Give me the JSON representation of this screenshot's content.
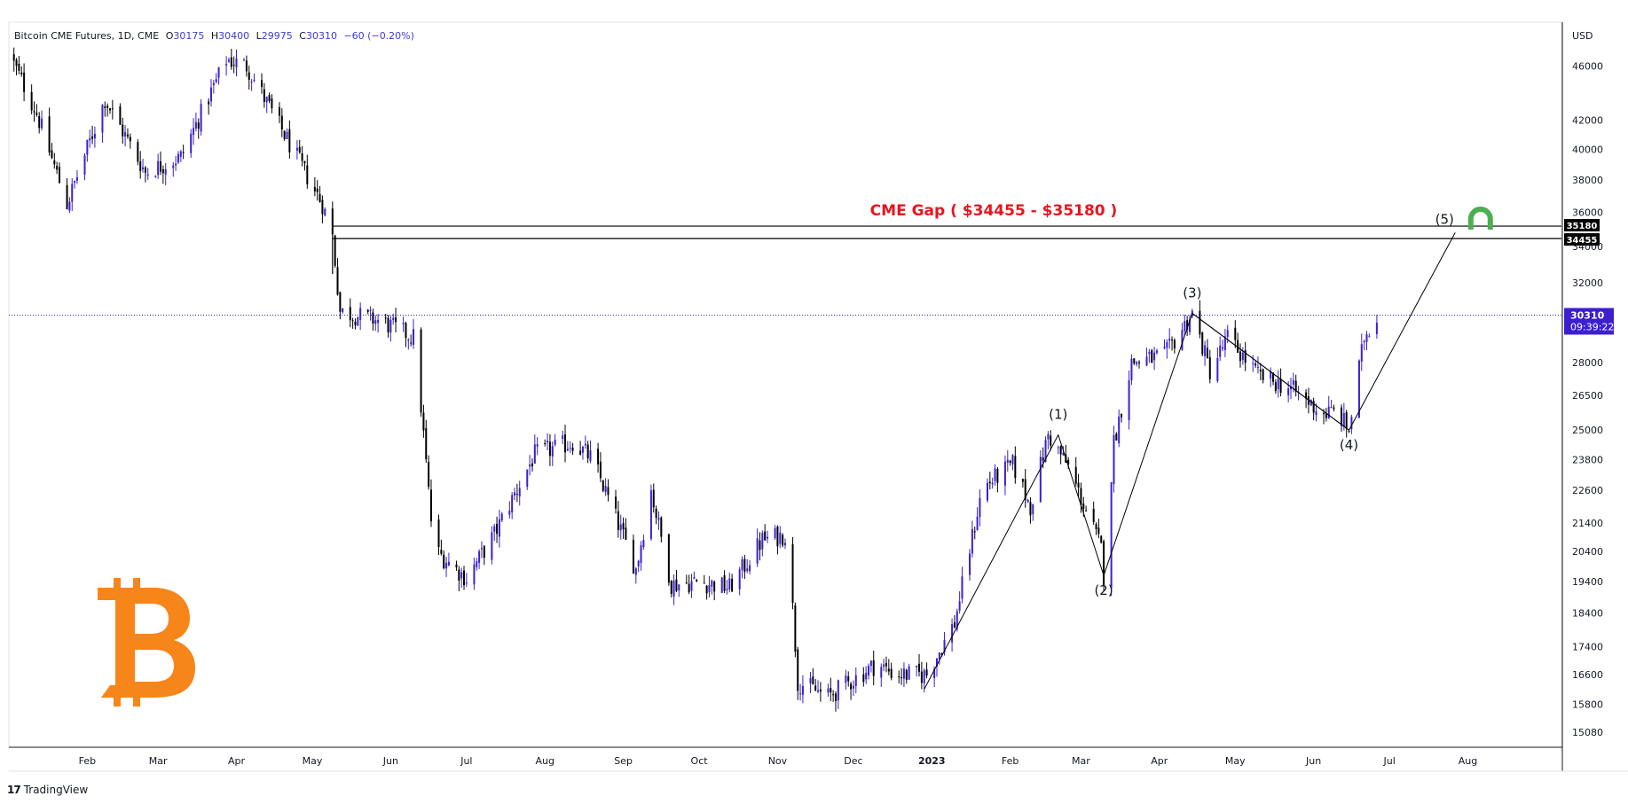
{
  "header": {
    "symbol": "Bitcoin CME Futures, 1D, CME",
    "open_label": "O",
    "open": "30175",
    "high_label": "H",
    "high": "30400",
    "low_label": "L",
    "low": "29975",
    "close_label": "C",
    "close": "30310",
    "change": "−60 (−0.20%)"
  },
  "price_axis": {
    "currency": "USD",
    "current_price": "30310",
    "countdown": "09:39:22",
    "gap_high_label": "35180",
    "gap_low_label": "34455"
  },
  "footer": {
    "brand": "TradingView"
  },
  "colors": {
    "up_candle": "#3c1fd1",
    "down_candle": "#000000",
    "gap_title": "#e8141e",
    "current_price": "#3c1fd1",
    "bitcoin_logo": "#f7861a",
    "target_icon": "#4caf50"
  },
  "icons": [
    "bitcoin-logo-icon",
    "target-arch-icon",
    "tradingview-logo-icon"
  ],
  "chart_data": {
    "type": "candlestick",
    "title": "Bitcoin CME Futures, 1D, CME",
    "xlabel": "",
    "ylabel": "USD",
    "ylim": [
      14700,
      49500
    ],
    "y_scale": "log",
    "grid": false,
    "x_ticks": [
      "Feb",
      "Mar",
      "Apr",
      "May",
      "Jun",
      "Jul",
      "Aug",
      "Sep",
      "Oct",
      "Nov",
      "Dec",
      "2023",
      "Feb",
      "Mar",
      "Apr",
      "May",
      "Jun",
      "Jul",
      "Aug"
    ],
    "y_ticks": [
      46000,
      42000,
      40000,
      38000,
      36000,
      34000,
      32000,
      28000,
      26500,
      25000,
      23800,
      22600,
      21400,
      20400,
      19400,
      18400,
      17400,
      16600,
      15800,
      15080
    ],
    "close_path": {
      "dates": [
        "2022-01-01",
        "2022-01-12",
        "2022-01-24",
        "2022-02-08",
        "2022-02-24",
        "2022-03-10",
        "2022-03-28",
        "2022-04-05",
        "2022-04-20",
        "2022-05-05",
        "2022-05-09",
        "2022-05-12",
        "2022-05-28",
        "2022-06-10",
        "2022-06-13",
        "2022-06-18",
        "2022-07-01",
        "2022-07-12",
        "2022-07-28",
        "2022-08-12",
        "2022-08-20",
        "2022-09-06",
        "2022-09-12",
        "2022-09-20",
        "2022-10-01",
        "2022-10-13",
        "2022-10-26",
        "2022-11-05",
        "2022-11-09",
        "2022-11-21",
        "2022-12-10",
        "2022-12-18",
        "2022-12-30",
        "2023-01-10",
        "2023-01-21",
        "2023-02-02",
        "2023-02-09",
        "2023-02-16",
        "2023-02-24",
        "2023-03-09",
        "2023-03-10",
        "2023-03-14",
        "2023-03-21",
        "2023-04-03",
        "2023-04-14",
        "2023-04-21",
        "2023-04-28",
        "2023-05-10",
        "2023-05-23",
        "2023-06-05",
        "2023-06-10",
        "2023-06-15",
        "2023-06-21",
        "2023-06-26"
      ],
      "close": [
        47000,
        42500,
        36500,
        43500,
        38500,
        39500,
        46500,
        46000,
        41000,
        36500,
        34600,
        30500,
        30000,
        29200,
        26000,
        20500,
        19500,
        21000,
        24000,
        24500,
        23800,
        19800,
        22600,
        19300,
        19400,
        19200,
        20800,
        21000,
        16400,
        16000,
        16900,
        16600,
        16600,
        18100,
        22700,
        23600,
        22000,
        24800,
        23500,
        20500,
        19600,
        24500,
        28000,
        28300,
        30400,
        27600,
        29200,
        27400,
        26800,
        25700,
        25800,
        25000,
        29200,
        30310
      ],
      "highs_lows": {
        "cycle_high": 49200,
        "cycle_low": 15080
      }
    },
    "annotations": [
      {
        "text": "CME Gap ( $34455 - $35180 )",
        "type": "gap-zone",
        "upper": 35180,
        "lower": 34455,
        "start": "2022-05-09",
        "end": "2023-08-31"
      },
      {
        "text": "(1)",
        "date": "2023-02-20",
        "price": 24800
      },
      {
        "text": "(2)",
        "date": "2023-03-10",
        "price": 19600
      },
      {
        "text": "(3)",
        "date": "2023-04-14",
        "price": 30400
      },
      {
        "text": "(4)",
        "date": "2023-06-15",
        "price": 25000
      },
      {
        "text": "(5)",
        "date": "2023-07-27",
        "price": 34800
      }
    ],
    "wave_points": [
      {
        "date": "2022-12-29",
        "price": 16200
      },
      {
        "date": "2023-02-20",
        "price": 24800
      },
      {
        "date": "2023-03-10",
        "price": 19600
      },
      {
        "date": "2023-04-14",
        "price": 30400
      },
      {
        "date": "2023-06-15",
        "price": 25000
      },
      {
        "date": "2023-07-27",
        "price": 34800
      }
    ],
    "wave_channel": [
      {
        "date": "2023-04-14",
        "price": 30400
      },
      {
        "date": "2023-06-15",
        "price": 25000
      }
    ],
    "current_price": 30310
  }
}
